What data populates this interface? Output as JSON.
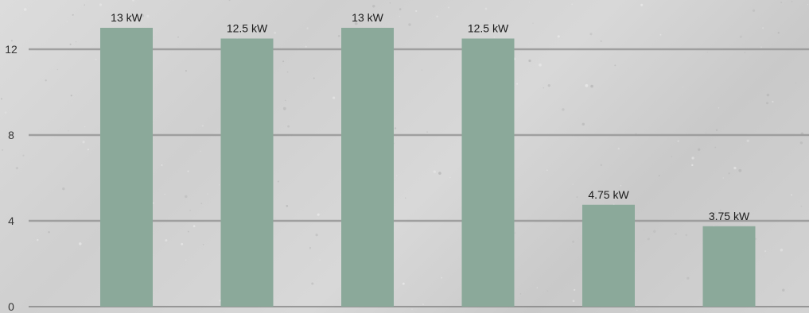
{
  "chart_data": {
    "type": "bar",
    "categories": [
      "",
      "",
      "",
      "",
      "",
      ""
    ],
    "values": [
      13,
      12.5,
      13,
      12.5,
      4.75,
      3.75
    ],
    "value_labels": [
      "13 kW",
      "12.5 kW",
      "13 kW",
      "12.5 kW",
      "4.75 kW",
      "3.75 kW"
    ],
    "yticks": [
      0,
      4,
      8,
      12
    ],
    "ylim": [
      0,
      14
    ],
    "title": "",
    "xlabel": "",
    "ylabel": "",
    "grid": true,
    "colors": {
      "bar": "#8ba99a",
      "grid": "#9a9a9a",
      "axis": "#7a7a7a"
    }
  }
}
